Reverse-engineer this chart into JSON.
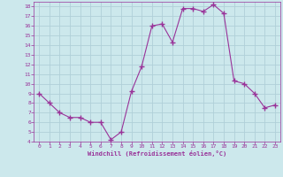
{
  "x": [
    0,
    1,
    2,
    3,
    4,
    5,
    6,
    7,
    8,
    9,
    10,
    11,
    12,
    13,
    14,
    15,
    16,
    17,
    18,
    19,
    20,
    21,
    22,
    23
  ],
  "y": [
    9.0,
    8.0,
    7.0,
    6.5,
    6.5,
    6.0,
    6.0,
    4.2,
    5.0,
    9.2,
    11.8,
    16.0,
    16.2,
    14.3,
    17.8,
    17.8,
    17.5,
    18.2,
    17.3,
    10.3,
    10.0,
    9.0,
    7.5,
    7.8
  ],
  "line_color": "#993399",
  "marker": "+",
  "marker_size": 4,
  "bg_color": "#cce8ec",
  "grid_color": "#b0d0d8",
  "xlabel": "Windchill (Refroidissement éolien,°C)",
  "xlabel_color": "#993399",
  "tick_color": "#993399",
  "ylim": [
    4,
    18.5
  ],
  "xlim": [
    -0.5,
    23.5
  ],
  "yticks": [
    4,
    5,
    6,
    7,
    8,
    9,
    10,
    11,
    12,
    13,
    14,
    15,
    16,
    17,
    18
  ],
  "xticks": [
    0,
    1,
    2,
    3,
    4,
    5,
    6,
    7,
    8,
    9,
    10,
    11,
    12,
    13,
    14,
    15,
    16,
    17,
    18,
    19,
    20,
    21,
    22,
    23
  ]
}
